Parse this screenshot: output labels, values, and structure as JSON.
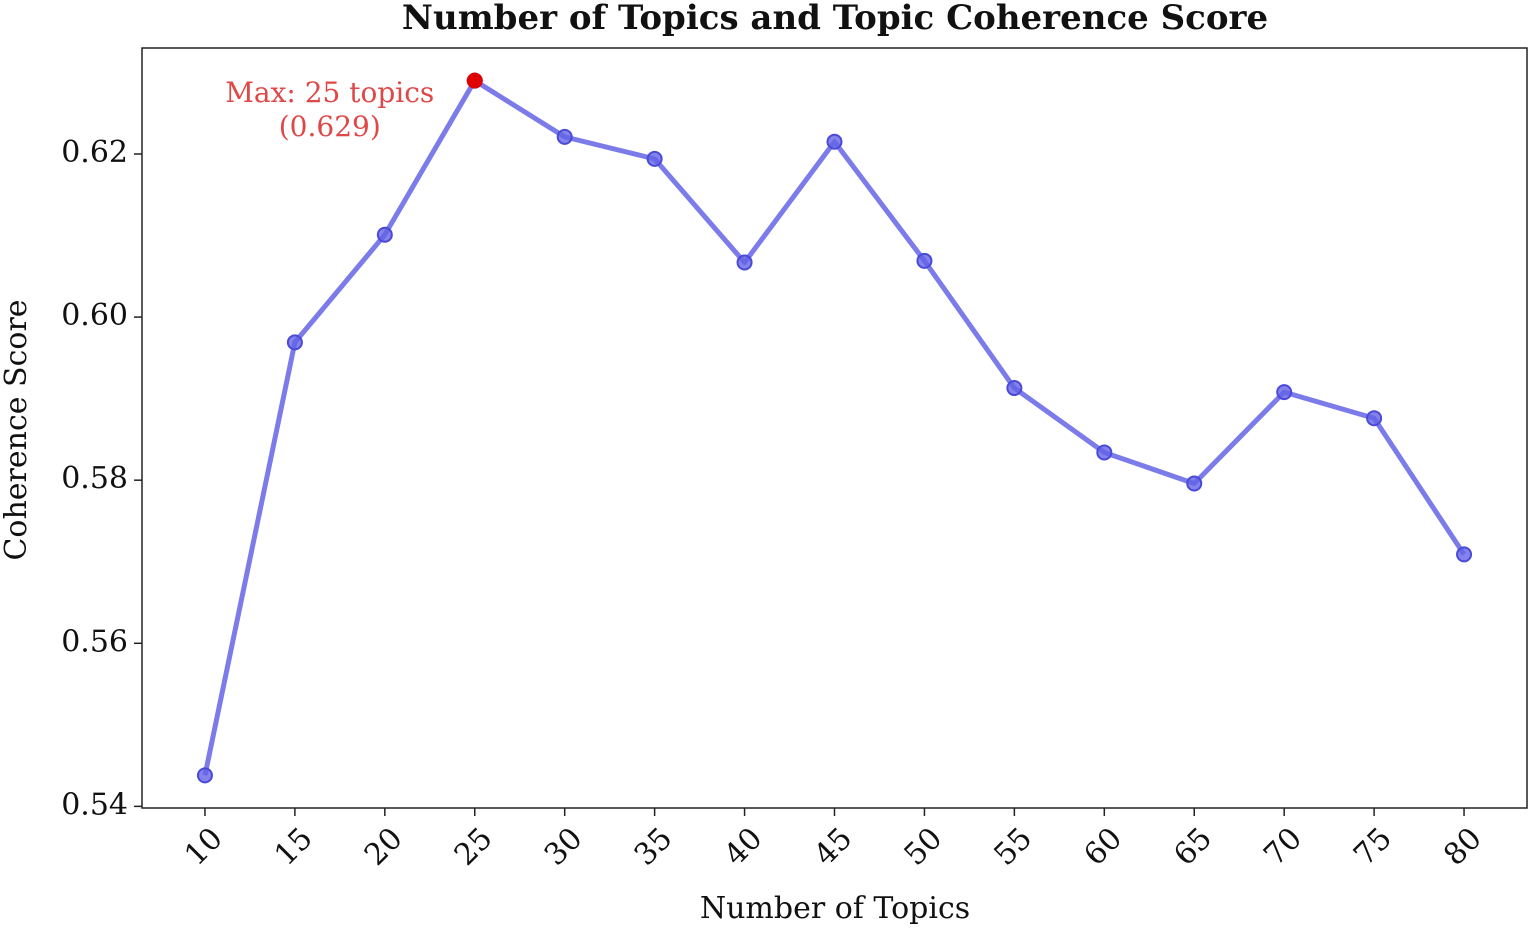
{
  "chart_data": {
    "type": "line",
    "title": "Number of Topics and Topic Coherence Score",
    "xlabel": "Number of Topics",
    "ylabel": "Coherence Score",
    "x": [
      10,
      15,
      20,
      25,
      30,
      35,
      40,
      45,
      50,
      55,
      60,
      65,
      70,
      75,
      80
    ],
    "series": [
      {
        "name": "Coherence Score",
        "color": "#6464e6",
        "values": [
          0.5438,
          0.5969,
          0.6101,
          0.629,
          0.6221,
          0.6194,
          0.6067,
          0.6215,
          0.6069,
          0.5913,
          0.5834,
          0.5796,
          0.5908,
          0.5876,
          0.5709
        ]
      }
    ],
    "highlight": {
      "index": 3,
      "color": "#e00000"
    },
    "annotation": {
      "lines": [
        "Max: 25 topics",
        "(0.629)"
      ],
      "color": "#e04848"
    },
    "xlim": [
      6.5,
      83.5
    ],
    "ylim": [
      0.5398,
      0.633
    ],
    "xticks": [
      10,
      15,
      20,
      25,
      30,
      35,
      40,
      45,
      50,
      55,
      60,
      65,
      70,
      75,
      80
    ],
    "yticks": [
      0.54,
      0.56,
      0.58,
      {
        "value": 0.6,
        "label": "0.60"
      },
      0.62
    ],
    "grid": false
  }
}
